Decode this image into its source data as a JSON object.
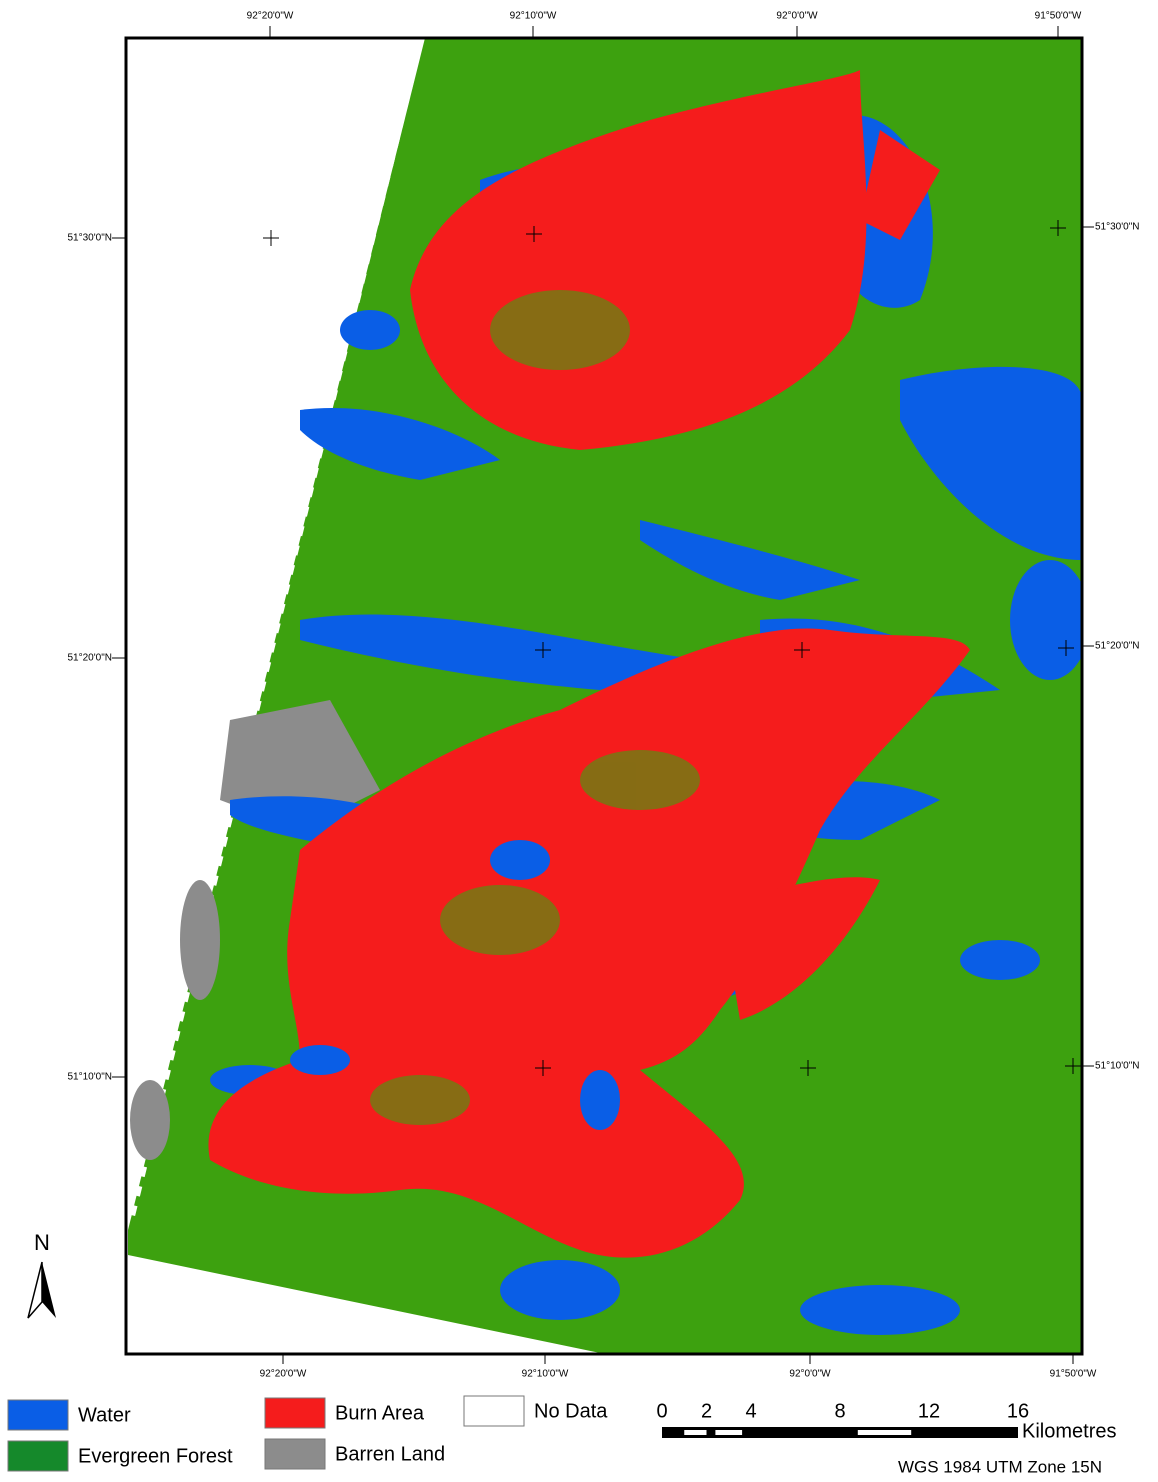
{
  "map": {
    "top_labels": [
      "92°20'0\"W",
      "92°10'0\"W",
      "92°0'0\"W",
      "91°50'0\"W"
    ],
    "bottom_labels": [
      "92°20'0\"W",
      "92°10'0\"W",
      "92°0'0\"W",
      "91°50'0\"W"
    ],
    "left_labels": [
      "51°30'0\"N",
      "51°20'0\"N",
      "51°10'0\"N"
    ],
    "right_labels": [
      "51°30'0\"N",
      "51°20'0\"N",
      "51°10'0\"N"
    ],
    "north": "N",
    "legend": [
      {
        "name": "Water",
        "color": "#0a5ee6"
      },
      {
        "name": "Evergreen Forest",
        "color": "#15892b"
      },
      {
        "name": "Burn Area",
        "color": "#f51c1c"
      },
      {
        "name": "Barren Land",
        "color": "#8c8c8c"
      },
      {
        "name": "No Data",
        "color": "#ffffff"
      }
    ],
    "scale": {
      "ticks": [
        0,
        2,
        4,
        8,
        12,
        16
      ],
      "unit": "Kilometres"
    },
    "projection": "WGS 1984 UTM Zone 15N"
  }
}
